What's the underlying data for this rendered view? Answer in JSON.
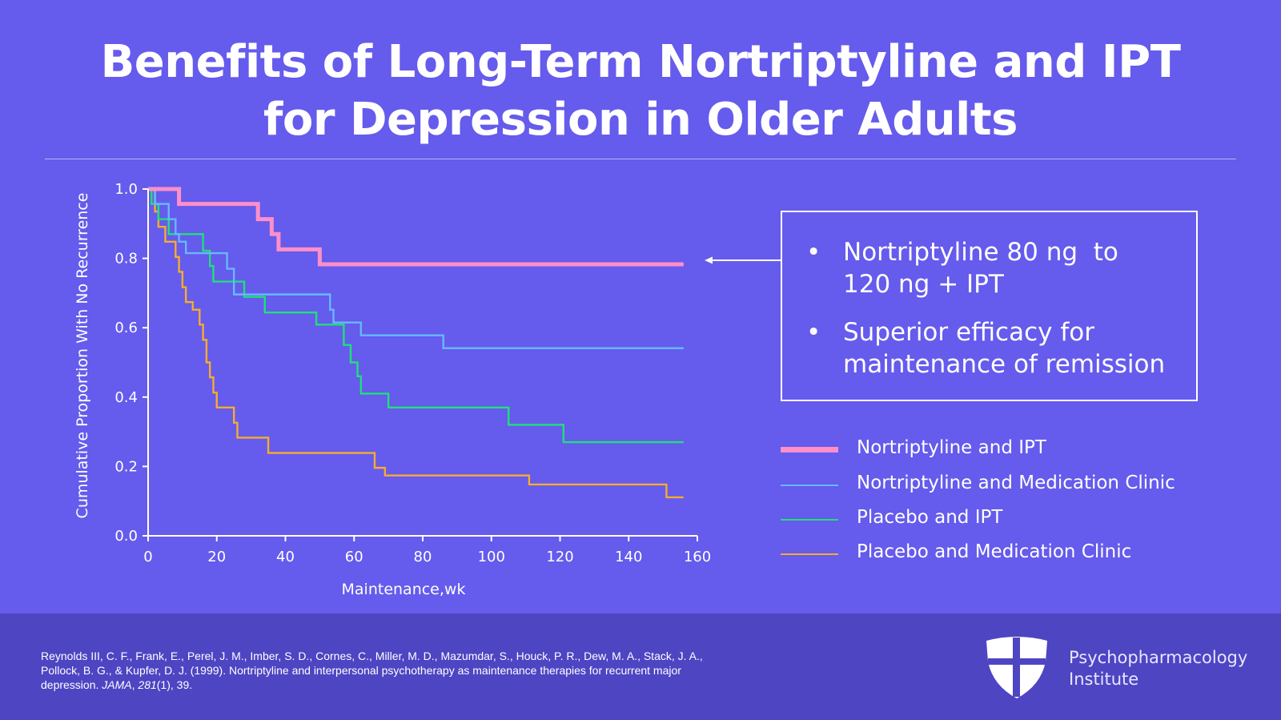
{
  "title": {
    "line1": "Benefits of Long-Term Nortriptyline and IPT",
    "line2": "for Depression in Older Adults"
  },
  "colors": {
    "background": "#655bec",
    "footer": "#4e45c3",
    "nortriptyline_ipt": "#ff8fc8",
    "nortriptyline_clinic": "#67b8ff",
    "placebo_ipt": "#1fe07a",
    "placebo_clinic": "#f7ab2f"
  },
  "callout": {
    "bullet": "•",
    "item1_line1": "Nortriptyline 80 ng  to",
    "item1_line2": "120 ng + IPT",
    "item2_line1": "Superior efficacy for",
    "item2_line2": "maintenance of remission"
  },
  "chart_data": {
    "type": "line",
    "step": true,
    "xlabel": "Maintenance,wk",
    "ylabel": "Cumulative Proportion With No Recurrence",
    "xlim": [
      0,
      160
    ],
    "ylim": [
      0,
      1.0
    ],
    "xticks": [
      "0",
      "20",
      "40",
      "60",
      "80",
      "100",
      "120",
      "140",
      "160"
    ],
    "yticks": [
      "0.0",
      "0.2",
      "0.4",
      "0.6",
      "0.8",
      "1.0"
    ],
    "grid": false,
    "legend_position": "right",
    "series": [
      {
        "name": "Nortriptyline and IPT",
        "color": "#ff8fc8",
        "emphasis": true,
        "x": [
          0,
          9,
          32,
          36,
          38,
          50,
          156
        ],
        "y": [
          1.0,
          0.957,
          0.913,
          0.87,
          0.826,
          0.783,
          0.783
        ]
      },
      {
        "name": "Nortriptyline and Medication Clinic",
        "color": "#67b8ff",
        "x": [
          0,
          2,
          6,
          8,
          9,
          11,
          16,
          23,
          25,
          53,
          54,
          62,
          86,
          156
        ],
        "y": [
          1.0,
          0.957,
          0.913,
          0.87,
          0.848,
          0.815,
          0.815,
          0.77,
          0.696,
          0.652,
          0.615,
          0.578,
          0.541,
          0.541
        ]
      },
      {
        "name": "Placebo and IPT",
        "color": "#1fe07a",
        "x": [
          0,
          1,
          3,
          6,
          8,
          16,
          18,
          19,
          26,
          28,
          34,
          49,
          57,
          59,
          61,
          62,
          63,
          70,
          105,
          121,
          156
        ],
        "y": [
          1.0,
          0.957,
          0.913,
          0.87,
          0.87,
          0.822,
          0.778,
          0.733,
          0.733,
          0.689,
          0.644,
          0.609,
          0.55,
          0.5,
          0.46,
          0.41,
          0.41,
          0.37,
          0.32,
          0.27,
          0.27
        ]
      },
      {
        "name": "Placebo and Medication Clinic",
        "color": "#f7ab2f",
        "x": [
          0,
          2,
          3,
          5,
          8,
          9,
          10,
          11,
          13,
          15,
          16,
          17,
          18,
          19,
          20,
          25,
          26,
          27,
          35,
          66,
          69,
          111,
          151,
          156
        ],
        "y": [
          1.0,
          0.935,
          0.891,
          0.848,
          0.804,
          0.761,
          0.717,
          0.674,
          0.652,
          0.609,
          0.565,
          0.5,
          0.457,
          0.413,
          0.37,
          0.326,
          0.283,
          0.283,
          0.239,
          0.196,
          0.174,
          0.148,
          0.111,
          0.111
        ]
      }
    ]
  },
  "citation": {
    "main": "Reynolds III, C. F., Frank, E., Perel, J. M., Imber, S. D., Cornes, C., Miller, M. D., Mazumdar, S., Houck, P. R., Dew, M. A., Stack, J. A., Pollock, B. G., & Kupfer, D. J. (1999). Nortriptyline and interpersonal psychotherapy as maintenance therapies for recurrent major depression. ",
    "journal": "JAMA",
    "sep": ", ",
    "volume": "281",
    "issue_pages": "(1), 39."
  },
  "org": {
    "line1": "Psychopharmacology",
    "line2": "Institute"
  }
}
